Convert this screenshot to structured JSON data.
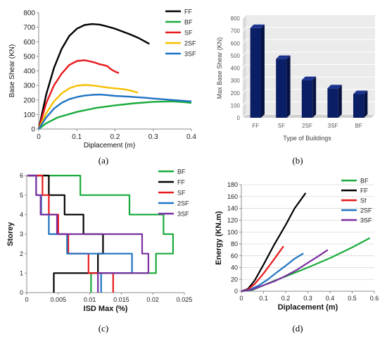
{
  "figure": {
    "captions": [
      "(a)",
      "(b)",
      "(c)",
      "(d)"
    ]
  },
  "colors": {
    "FF": "#000000",
    "BF": "#1aab3c",
    "SF": "#e8191c",
    "2SF": "#f5c000",
    "3SF": "#1f73c4",
    "3SF_purple": "#7a2ea0",
    "bar": "#0b1f66",
    "bar_side": "#061240",
    "bar_top": "#1c3490",
    "plot_bg_b": "#ebebeb",
    "grid_b": "#ffffff",
    "grid": "#d9d9d9"
  },
  "chart_data": [
    {
      "id": "a",
      "type": "line",
      "xlabel": "Diplacement (m)",
      "ylabel": "Base Shear (KN)",
      "xlim": [
        0,
        0.4
      ],
      "ylim": [
        0,
        800
      ],
      "xticks": [
        0,
        0.1,
        0.2,
        0.3,
        0.4
      ],
      "xtick_labels": [
        "0",
        "0.1",
        "0.2",
        "0.3",
        "0.4"
      ],
      "yticks": [
        0,
        100,
        200,
        300,
        400,
        500,
        600,
        700,
        800
      ],
      "ytick_labels": [
        "0",
        "100",
        "200",
        "300",
        "400",
        "500",
        "600",
        "700",
        "800"
      ],
      "grid": false,
      "legend_position": "top-right",
      "series": [
        {
          "name": "FF",
          "color": "#000000",
          "points": [
            [
              0,
              0
            ],
            [
              0.02,
              240
            ],
            [
              0.04,
              420
            ],
            [
              0.06,
              550
            ],
            [
              0.08,
              640
            ],
            [
              0.1,
              690
            ],
            [
              0.12,
              715
            ],
            [
              0.14,
              722
            ],
            [
              0.16,
              718
            ],
            [
              0.18,
              705
            ],
            [
              0.2,
              690
            ],
            [
              0.22,
              670
            ],
            [
              0.24,
              650
            ],
            [
              0.26,
              628
            ],
            [
              0.28,
              600
            ],
            [
              0.29,
              585
            ]
          ]
        },
        {
          "name": "BF",
          "color": "#1aab3c",
          "points": [
            [
              0,
              0
            ],
            [
              0.02,
              40
            ],
            [
              0.05,
              80
            ],
            [
              0.1,
              118
            ],
            [
              0.15,
              145
            ],
            [
              0.2,
              163
            ],
            [
              0.25,
              177
            ],
            [
              0.3,
              187
            ],
            [
              0.35,
              190
            ],
            [
              0.38,
              185
            ],
            [
              0.4,
              180
            ]
          ]
        },
        {
          "name": "SF",
          "color": "#e8191c",
          "points": [
            [
              0,
              0
            ],
            [
              0.02,
              180
            ],
            [
              0.04,
              300
            ],
            [
              0.06,
              380
            ],
            [
              0.08,
              440
            ],
            [
              0.1,
              468
            ],
            [
              0.12,
              473
            ],
            [
              0.14,
              462
            ],
            [
              0.15,
              455
            ],
            [
              0.16,
              445
            ],
            [
              0.17,
              440
            ],
            [
              0.18,
              432
            ],
            [
              0.19,
              410
            ],
            [
              0.2,
              395
            ],
            [
              0.21,
              385
            ]
          ]
        },
        {
          "name": "2SF",
          "color": "#f5c000",
          "points": [
            [
              0,
              0
            ],
            [
              0.02,
              110
            ],
            [
              0.04,
              190
            ],
            [
              0.06,
              245
            ],
            [
              0.08,
              280
            ],
            [
              0.1,
              298
            ],
            [
              0.12,
              303
            ],
            [
              0.14,
              300
            ],
            [
              0.16,
              293
            ],
            [
              0.18,
              285
            ],
            [
              0.2,
              280
            ],
            [
              0.22,
              275
            ],
            [
              0.24,
              265
            ],
            [
              0.26,
              250
            ]
          ]
        },
        {
          "name": "3SF",
          "color": "#1f73c4",
          "points": [
            [
              0,
              0
            ],
            [
              0.02,
              80
            ],
            [
              0.04,
              140
            ],
            [
              0.06,
              180
            ],
            [
              0.08,
              205
            ],
            [
              0.1,
              220
            ],
            [
              0.12,
              230
            ],
            [
              0.14,
              235
            ],
            [
              0.16,
              237
            ],
            [
              0.18,
              233
            ],
            [
              0.2,
              228
            ],
            [
              0.24,
              222
            ],
            [
              0.28,
              215
            ],
            [
              0.3,
              210
            ],
            [
              0.35,
              200
            ],
            [
              0.4,
              190
            ]
          ]
        }
      ]
    },
    {
      "id": "b",
      "type": "bar",
      "xlabel": "Type of Buildings",
      "ylabel": "Max Base Shear (KN)",
      "categories": [
        "FF",
        "SF",
        "2SF",
        "3SF",
        "BF"
      ],
      "values": [
        722,
        473,
        303,
        237,
        190
      ],
      "ylim": [
        0,
        800
      ],
      "yticks": [
        0,
        100,
        200,
        300,
        400,
        500,
        600,
        700,
        800
      ],
      "ytick_labels": [
        "0",
        "100",
        "200",
        "300",
        "400",
        "500",
        "600",
        "700",
        "800"
      ],
      "grid": true,
      "style": "3d-column"
    },
    {
      "id": "c",
      "type": "line",
      "xlabel": "ISD Max (%)",
      "ylabel": "Storey",
      "xlim": [
        0,
        0.025
      ],
      "ylim": [
        0,
        6
      ],
      "xticks": [
        0,
        0.005,
        0.01,
        0.015,
        0.02,
        0.025
      ],
      "xtick_labels": [
        "0",
        "0.005",
        "0.01",
        "0.015",
        "0.02",
        "0.025"
      ],
      "yticks": [
        0,
        1,
        2,
        3,
        4,
        5,
        6
      ],
      "ytick_labels": [
        "0",
        "1",
        "2",
        "3",
        "4",
        "5",
        "6"
      ],
      "grid": false,
      "legend_position": "top-right",
      "series": [
        {
          "name": "BF",
          "color": "#1aab3c",
          "points": [
            [
              0.0102,
              0
            ],
            [
              0.0102,
              1
            ],
            [
              0.0205,
              1
            ],
            [
              0.0205,
              2
            ],
            [
              0.0232,
              2
            ],
            [
              0.0232,
              3
            ],
            [
              0.0217,
              3
            ],
            [
              0.0217,
              4
            ],
            [
              0.0163,
              4
            ],
            [
              0.0163,
              5
            ],
            [
              0.0085,
              5
            ],
            [
              0.0085,
              6
            ],
            [
              0.0001,
              6
            ]
          ]
        },
        {
          "name": "FF",
          "color": "#000000",
          "points": [
            [
              0.0043,
              0
            ],
            [
              0.0043,
              1
            ],
            [
              0.0113,
              1
            ],
            [
              0.0113,
              2
            ],
            [
              0.0121,
              2
            ],
            [
              0.0121,
              3
            ],
            [
              0.009,
              3
            ],
            [
              0.009,
              4
            ],
            [
              0.006,
              4
            ],
            [
              0.006,
              5
            ],
            [
              0.0035,
              5
            ],
            [
              0.0035,
              6
            ],
            [
              0.0001,
              6
            ]
          ]
        },
        {
          "name": "SF",
          "color": "#e8191c",
          "points": [
            [
              0.0137,
              0
            ],
            [
              0.0137,
              1
            ],
            [
              0.0098,
              1
            ],
            [
              0.0098,
              2
            ],
            [
              0.0066,
              2
            ],
            [
              0.0066,
              3
            ],
            [
              0.005,
              3
            ],
            [
              0.005,
              4
            ],
            [
              0.0035,
              4
            ],
            [
              0.0035,
              5
            ],
            [
              0.0025,
              5
            ],
            [
              0.0025,
              6
            ],
            [
              0.0001,
              6
            ]
          ]
        },
        {
          "name": "2SF",
          "color": "#1f73c4",
          "points": [
            [
              0.0118,
              0
            ],
            [
              0.0118,
              1
            ],
            [
              0.0167,
              1
            ],
            [
              0.0167,
              2
            ],
            [
              0.0064,
              2
            ],
            [
              0.0064,
              3
            ],
            [
              0.0035,
              3
            ],
            [
              0.0035,
              4
            ],
            [
              0.0023,
              4
            ],
            [
              0.0023,
              5
            ],
            [
              0.0015,
              5
            ],
            [
              0.0015,
              6
            ],
            [
              0.0001,
              6
            ]
          ]
        },
        {
          "name": "3SF",
          "color": "#7a2ea0",
          "points": [
            [
              0.0113,
              0
            ],
            [
              0.0113,
              1
            ],
            [
              0.0193,
              1
            ],
            [
              0.0193,
              2
            ],
            [
              0.0183,
              2
            ],
            [
              0.0183,
              3
            ],
            [
              0.0048,
              3
            ],
            [
              0.0048,
              4
            ],
            [
              0.0022,
              4
            ],
            [
              0.0022,
              5
            ],
            [
              0.0015,
              5
            ],
            [
              0.0015,
              6
            ],
            [
              0.0001,
              6
            ]
          ]
        }
      ]
    },
    {
      "id": "d",
      "type": "line",
      "xlabel": "Diplacement (m)",
      "ylabel": "Energy (KN.m)",
      "xlim": [
        0,
        0.6
      ],
      "ylim": [
        0,
        180
      ],
      "xticks": [
        0,
        0.1,
        0.2,
        0.3,
        0.4,
        0.5,
        0.6
      ],
      "xtick_labels": [
        "0",
        "0.1",
        "0.2",
        "0.3",
        "0.4",
        "0.5",
        "0.6"
      ],
      "yticks": [
        0,
        20,
        40,
        60,
        80,
        100,
        120,
        140,
        160,
        180
      ],
      "ytick_labels": [
        "0",
        "20",
        "40",
        "60",
        "80",
        "100",
        "120",
        "140",
        "160",
        "180"
      ],
      "grid": true,
      "legend_position": "top-right",
      "series": [
        {
          "name": "BF",
          "color": "#1aab3c",
          "points": [
            [
              0,
              0
            ],
            [
              0.05,
              2
            ],
            [
              0.1,
              10
            ],
            [
              0.15,
              18
            ],
            [
              0.2,
              25
            ],
            [
              0.3,
              40
            ],
            [
              0.4,
              56
            ],
            [
              0.5,
              74
            ],
            [
              0.58,
              90
            ]
          ]
        },
        {
          "name": "FF",
          "color": "#000000",
          "points": [
            [
              0,
              0
            ],
            [
              0.03,
              4
            ],
            [
              0.06,
              18
            ],
            [
              0.1,
              45
            ],
            [
              0.15,
              80
            ],
            [
              0.2,
              112
            ],
            [
              0.24,
              140
            ],
            [
              0.29,
              166
            ]
          ]
        },
        {
          "name": "Sf",
          "color": "#e8191c",
          "points": [
            [
              0,
              0
            ],
            [
              0.03,
              3
            ],
            [
              0.06,
              12
            ],
            [
              0.1,
              30
            ],
            [
              0.14,
              50
            ],
            [
              0.19,
              76
            ]
          ]
        },
        {
          "name": "2SF",
          "color": "#1f73c4",
          "points": [
            [
              0,
              0
            ],
            [
              0.04,
              3
            ],
            [
              0.08,
              10
            ],
            [
              0.12,
              20
            ],
            [
              0.16,
              32
            ],
            [
              0.2,
              43
            ],
            [
              0.24,
              55
            ],
            [
              0.28,
              64
            ]
          ]
        },
        {
          "name": "3SF",
          "color": "#7a2ea0",
          "points": [
            [
              0,
              0
            ],
            [
              0.05,
              3
            ],
            [
              0.1,
              10
            ],
            [
              0.15,
              17
            ],
            [
              0.2,
              26
            ],
            [
              0.25,
              36
            ],
            [
              0.3,
              48
            ],
            [
              0.35,
              60
            ],
            [
              0.39,
              70
            ]
          ]
        }
      ]
    }
  ]
}
